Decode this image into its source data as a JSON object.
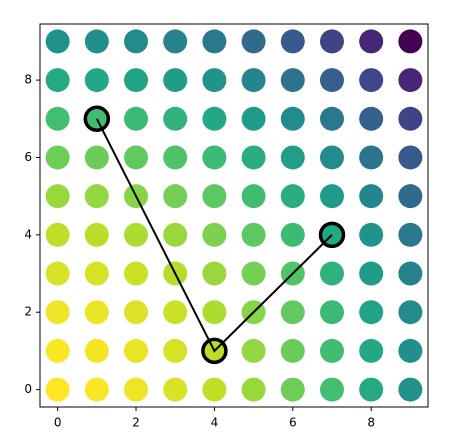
{
  "chart_data": {
    "type": "scatter",
    "xlim": [
      -0.45,
      9.45
    ],
    "ylim": [
      -0.45,
      9.45
    ],
    "xticks": [
      0,
      2,
      4,
      6,
      8
    ],
    "yticks": [
      0,
      2,
      4,
      6,
      8
    ],
    "grid": false,
    "colormap": [
      "#fde725",
      "#bddf26",
      "#7ad151",
      "#44bf70",
      "#22a884",
      "#21918c",
      "#2a788e",
      "#355f8d",
      "#414487",
      "#482475",
      "#440154"
    ],
    "clim": [
      0,
      162
    ],
    "series": [
      {
        "type": "scatter",
        "x": [
          0,
          1,
          2,
          3,
          4,
          5,
          6,
          7,
          8,
          9,
          0,
          1,
          2,
          3,
          4,
          5,
          6,
          7,
          8,
          9,
          0,
          1,
          2,
          3,
          4,
          5,
          6,
          7,
          8,
          9,
          0,
          1,
          2,
          3,
          4,
          5,
          6,
          7,
          8,
          9,
          0,
          1,
          2,
          3,
          4,
          5,
          6,
          7,
          8,
          9,
          0,
          1,
          2,
          3,
          4,
          5,
          6,
          7,
          8,
          9,
          0,
          1,
          2,
          3,
          4,
          5,
          6,
          7,
          8,
          9,
          0,
          1,
          2,
          3,
          4,
          5,
          6,
          7,
          8,
          9,
          0,
          1,
          2,
          3,
          4,
          5,
          6,
          7,
          8,
          9,
          0,
          1,
          2,
          3,
          4,
          5,
          6,
          7,
          8,
          9
        ],
        "y": [
          0,
          0,
          0,
          0,
          0,
          0,
          0,
          0,
          0,
          0,
          1,
          1,
          1,
          1,
          1,
          1,
          1,
          1,
          1,
          1,
          2,
          2,
          2,
          2,
          2,
          2,
          2,
          2,
          2,
          2,
          3,
          3,
          3,
          3,
          3,
          3,
          3,
          3,
          3,
          3,
          4,
          4,
          4,
          4,
          4,
          4,
          4,
          4,
          4,
          4,
          5,
          5,
          5,
          5,
          5,
          5,
          5,
          5,
          5,
          5,
          6,
          6,
          6,
          6,
          6,
          6,
          6,
          6,
          6,
          6,
          7,
          7,
          7,
          7,
          7,
          7,
          7,
          7,
          7,
          7,
          8,
          8,
          8,
          8,
          8,
          8,
          8,
          8,
          8,
          8,
          9,
          9,
          9,
          9,
          9,
          9,
          9,
          9,
          9,
          9
        ],
        "c": [
          0,
          1,
          4,
          9,
          16,
          25,
          36,
          49,
          64,
          81,
          1,
          2,
          5,
          10,
          17,
          26,
          37,
          50,
          65,
          82,
          4,
          5,
          8,
          13,
          20,
          29,
          40,
          53,
          68,
          85,
          9,
          10,
          13,
          18,
          25,
          34,
          45,
          58,
          73,
          90,
          16,
          17,
          20,
          25,
          32,
          41,
          52,
          65,
          80,
          97,
          25,
          26,
          29,
          34,
          41,
          50,
          61,
          74,
          89,
          106,
          36,
          37,
          40,
          45,
          52,
          61,
          72,
          85,
          100,
          117,
          49,
          50,
          53,
          58,
          65,
          74,
          85,
          98,
          113,
          130,
          64,
          65,
          68,
          73,
          80,
          89,
          100,
          113,
          128,
          145,
          81,
          82,
          85,
          90,
          97,
          106,
          117,
          130,
          145,
          162
        ]
      },
      {
        "type": "line",
        "color": "#000000",
        "x": [
          1,
          4,
          7
        ],
        "y": [
          7,
          1,
          4
        ]
      }
    ]
  }
}
